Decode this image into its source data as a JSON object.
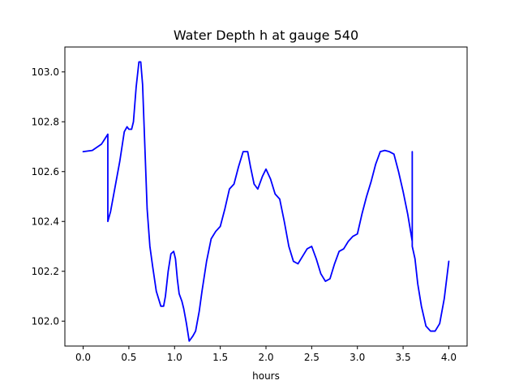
{
  "chart_data": {
    "type": "line",
    "title": "Water Depth h at gauge 540",
    "xlabel": "hours",
    "ylabel": "",
    "xlim": [
      -0.2,
      4.2
    ],
    "ylim": [
      101.9,
      103.1
    ],
    "grid": false,
    "x_ticks": [
      0.0,
      0.5,
      1.0,
      1.5,
      2.0,
      2.5,
      3.0,
      3.5,
      4.0
    ],
    "x_tick_labels": [
      "0.0",
      "0.5",
      "1.0",
      "1.5",
      "2.0",
      "2.5",
      "3.0",
      "3.5",
      "4.0"
    ],
    "y_ticks": [
      102.0,
      102.2,
      102.4,
      102.6,
      102.8,
      103.0
    ],
    "y_tick_labels": [
      "102.0",
      "102.2",
      "102.4",
      "102.6",
      "102.8",
      "103.0"
    ],
    "series": [
      {
        "color": "#0000ff",
        "x": [
          0.0,
          0.1,
          0.2,
          0.27,
          0.27,
          0.3,
          0.35,
          0.4,
          0.45,
          0.48,
          0.5,
          0.53,
          0.55,
          0.58,
          0.61,
          0.63,
          0.65,
          0.68,
          0.7,
          0.73,
          0.76,
          0.8,
          0.85,
          0.88,
          0.9,
          0.93,
          0.96,
          0.99,
          1.01,
          1.03,
          1.05,
          1.08,
          1.1,
          1.13,
          1.16,
          1.2,
          1.23,
          1.27,
          1.3,
          1.35,
          1.4,
          1.45,
          1.5,
          1.55,
          1.6,
          1.65,
          1.7,
          1.75,
          1.8,
          1.83,
          1.87,
          1.91,
          1.96,
          2.0,
          2.05,
          2.1,
          2.15,
          2.2,
          2.25,
          2.3,
          2.35,
          2.4,
          2.45,
          2.5,
          2.55,
          2.6,
          2.65,
          2.7,
          2.75,
          2.8,
          2.85,
          2.9,
          2.95,
          3.0,
          3.05,
          3.1,
          3.15,
          3.2,
          3.25,
          3.3,
          3.35,
          3.4,
          3.45,
          3.5,
          3.55,
          3.6,
          3.6,
          3.6,
          3.63,
          3.66,
          3.7,
          3.75,
          3.8,
          3.85,
          3.9,
          3.95,
          4.0
        ],
        "y": [
          102.68,
          102.685,
          102.71,
          102.75,
          102.4,
          102.44,
          102.54,
          102.64,
          102.76,
          102.78,
          102.77,
          102.77,
          102.8,
          102.94,
          103.04,
          103.04,
          102.95,
          102.65,
          102.45,
          102.3,
          102.22,
          102.12,
          102.06,
          102.06,
          102.1,
          102.2,
          102.27,
          102.28,
          102.25,
          102.17,
          102.11,
          102.08,
          102.05,
          101.99,
          101.92,
          101.94,
          101.96,
          102.04,
          102.12,
          102.24,
          102.33,
          102.36,
          102.38,
          102.45,
          102.53,
          102.55,
          102.62,
          102.68,
          102.68,
          102.62,
          102.55,
          102.53,
          102.58,
          102.61,
          102.57,
          102.51,
          102.49,
          102.4,
          102.3,
          102.24,
          102.23,
          102.26,
          102.29,
          102.3,
          102.25,
          102.19,
          102.16,
          102.17,
          102.23,
          102.28,
          102.29,
          102.32,
          102.34,
          102.35,
          102.43,
          102.5,
          102.56,
          102.63,
          102.68,
          102.685,
          102.68,
          102.67,
          102.6,
          102.52,
          102.43,
          102.32,
          102.68,
          102.3,
          102.25,
          102.15,
          102.06,
          101.98,
          101.96,
          101.96,
          101.99,
          102.09,
          102.24
        ]
      }
    ]
  }
}
